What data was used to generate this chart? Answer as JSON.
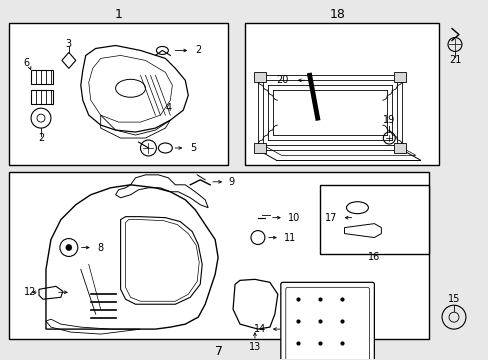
{
  "bg_color": "#e8e8e8",
  "line_color": "#000000",
  "box_bg": "#e8e8e8",
  "fig_w": 4.89,
  "fig_h": 3.6,
  "dpi": 100
}
